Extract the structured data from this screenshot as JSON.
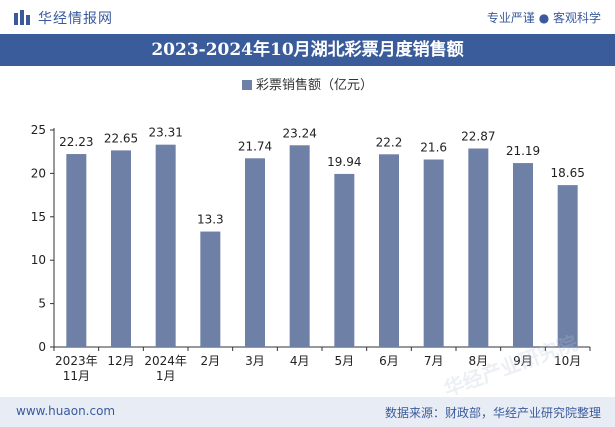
{
  "header": {
    "logo_text": "华经情报网",
    "tagline": "专业严谨 ● 客观科学"
  },
  "chart_data": {
    "type": "bar",
    "title": "2023-2024年10月湖北彩票月度销售额",
    "categories": [
      "2023年\n11月",
      "12月",
      "2024年\n1月",
      "2月",
      "3月",
      "4月",
      "5月",
      "6月",
      "7月",
      "8月",
      "9月",
      "10月"
    ],
    "series": [
      {
        "name": "彩票销售额（亿元）",
        "values": [
          22.23,
          22.65,
          23.31,
          13.3,
          21.74,
          23.24,
          19.94,
          22.2,
          21.6,
          22.87,
          21.19,
          18.65
        ],
        "labels": [
          "22.23",
          "22.65",
          "23.31",
          "13.3",
          "21.74",
          "23.24",
          "19.94",
          "22.2",
          "21.6",
          "22.87",
          "21.19",
          "18.65"
        ]
      }
    ],
    "ylim": [
      0,
      25
    ],
    "yticks": [
      "0",
      "5",
      "10",
      "15",
      "20",
      "25"
    ],
    "xlabel": "",
    "ylabel": "",
    "legend": "top-center",
    "grid": false,
    "bar_color": "#6f80a6"
  },
  "watermark_text": "华经产业研究院",
  "footer": {
    "website": "www.huaon.com",
    "source": "数据来源：财政部，华经产业研究院整理"
  }
}
